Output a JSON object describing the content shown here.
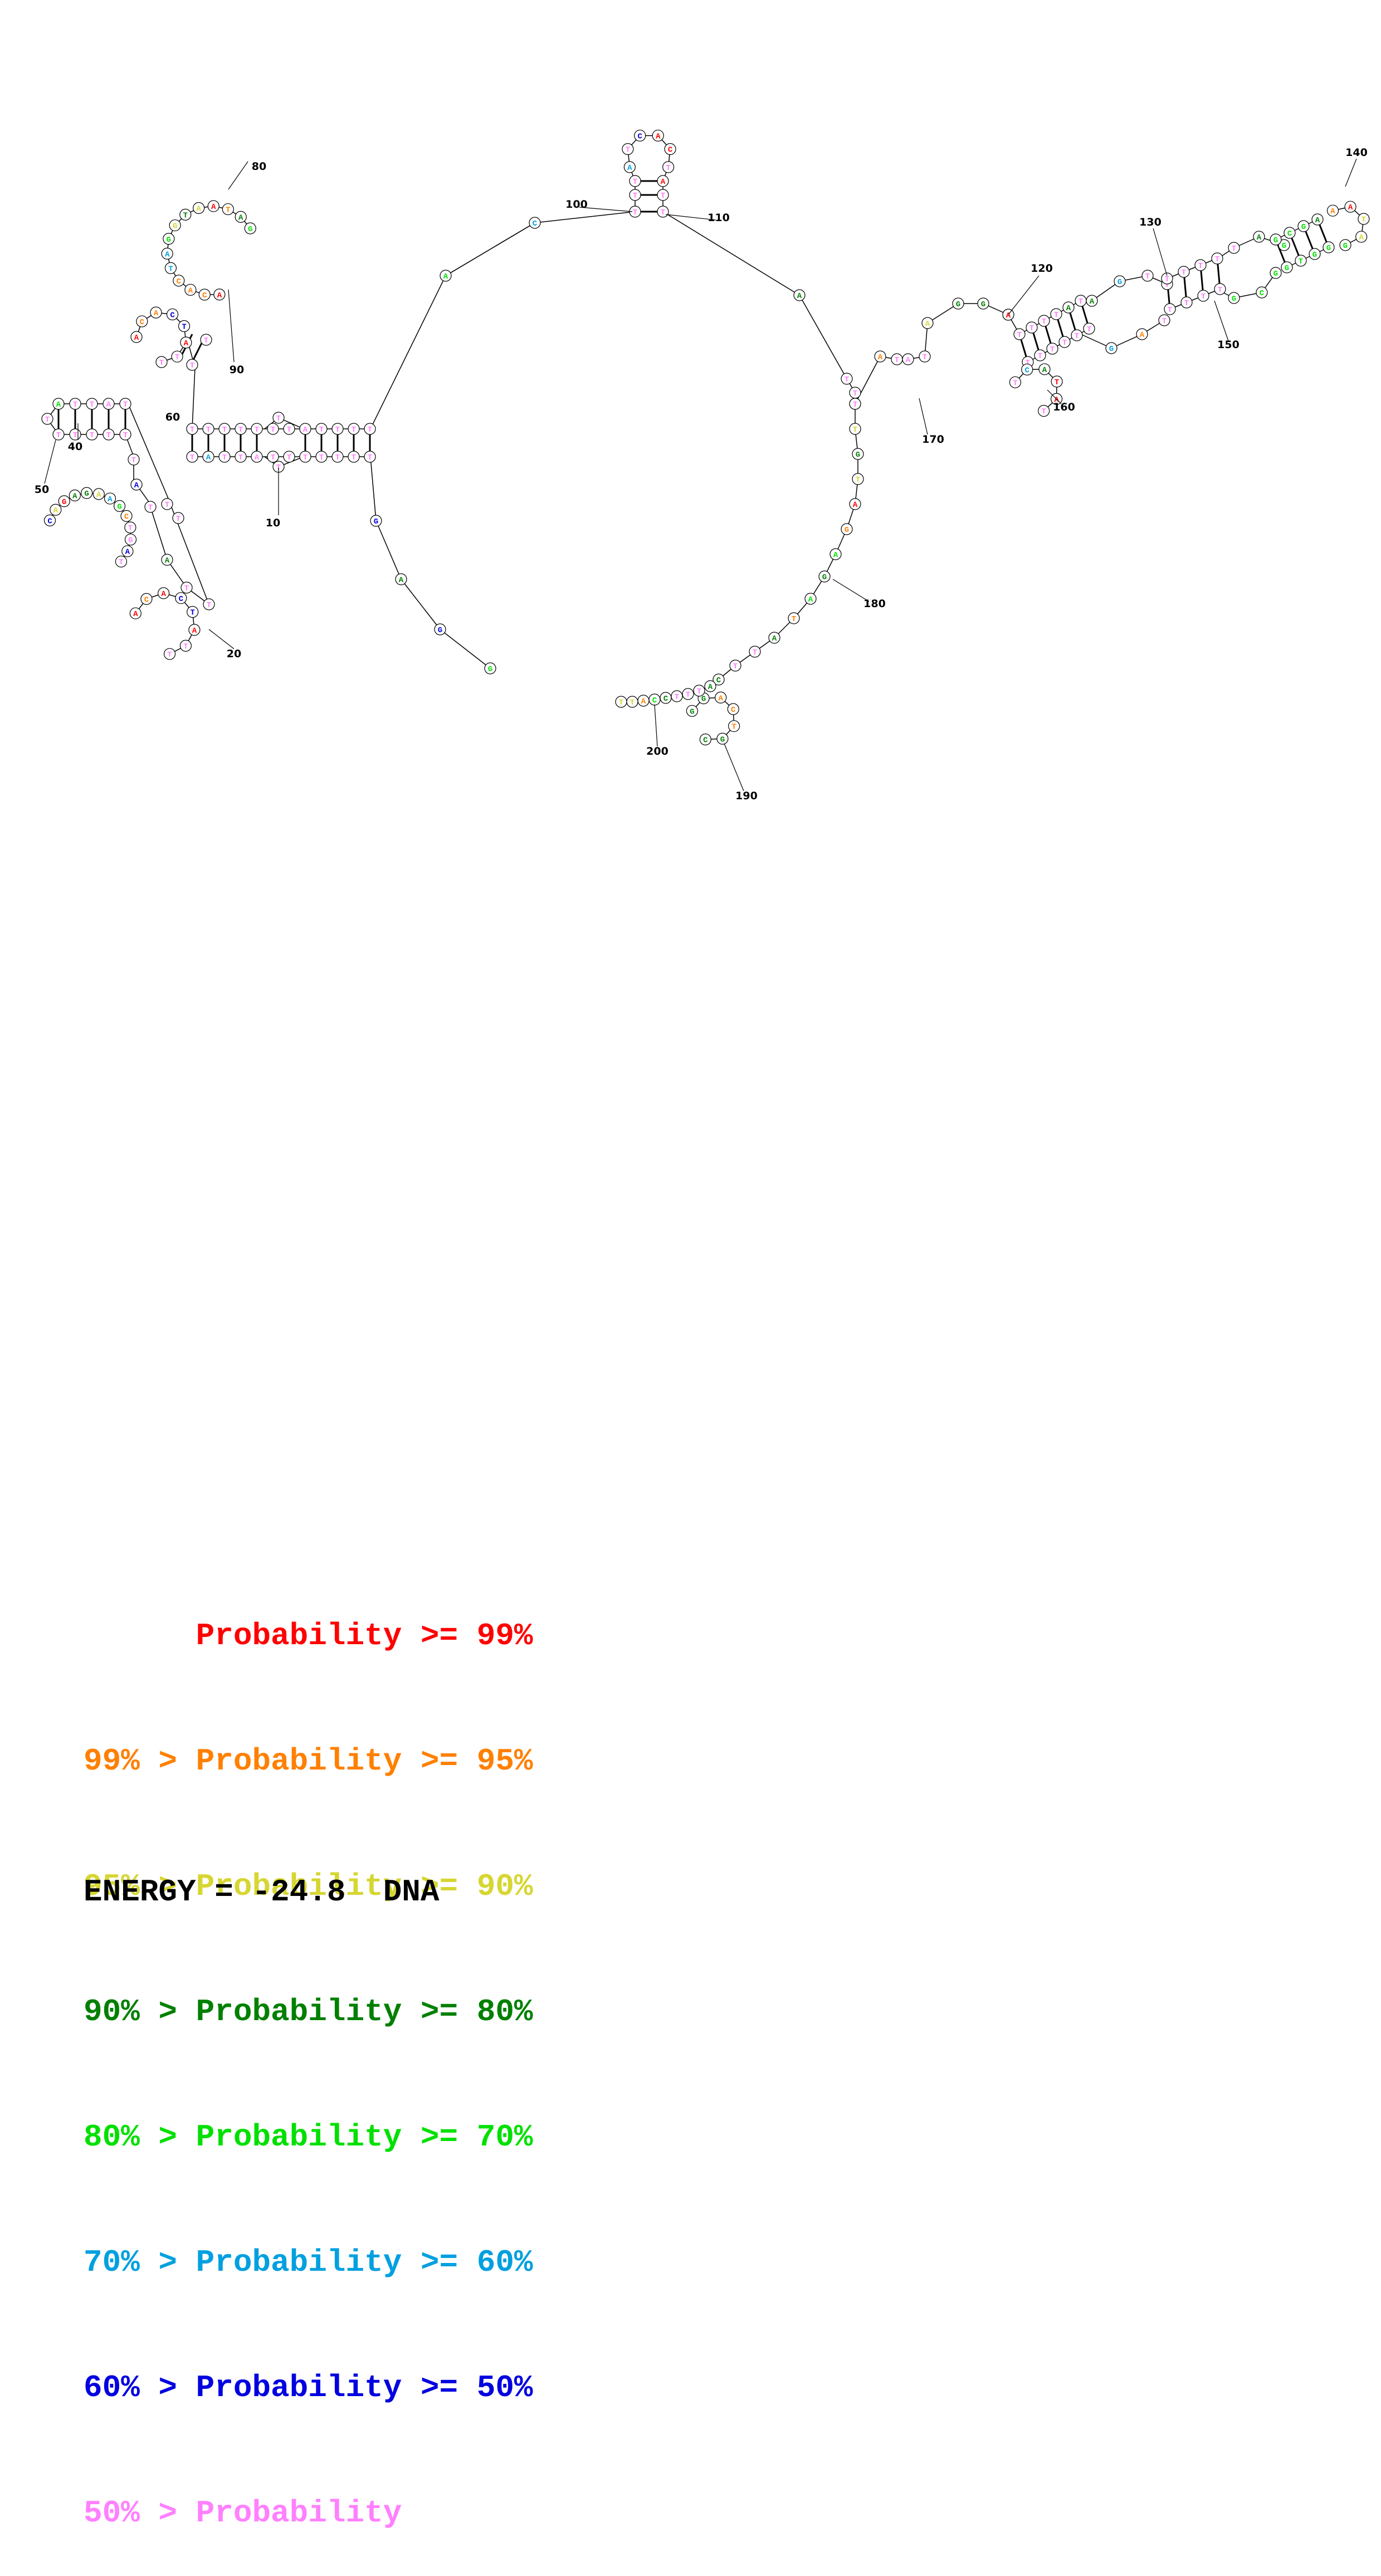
{
  "diagram": {
    "type": "rna-secondary-structure",
    "position_labels": [
      "10",
      "20",
      "40",
      "50",
      "60",
      "80",
      "90",
      "100",
      "110",
      "120",
      "130",
      "140",
      "150",
      "160",
      "170",
      "180",
      "190",
      "200"
    ],
    "nucleotides": {
      "hairpin_top": [
        "T",
        "C",
        "A",
        "C",
        "A",
        "T",
        "T",
        "T",
        "T"
      ],
      "hairpin_left": [
        "A",
        "C",
        "A",
        "C",
        "T",
        "A",
        "G",
        "G",
        "T",
        "A",
        "A",
        "T",
        "A",
        "G",
        "G",
        "T",
        "C",
        "A"
      ],
      "loop_lower_left": [
        "C",
        "A",
        "G",
        "A",
        "G",
        "A",
        "A",
        "G",
        "C",
        "T",
        "G",
        "A",
        "T",
        "A",
        "T"
      ],
      "loop_bottom": [
        "A",
        "C",
        "A",
        "C",
        "T",
        "A",
        "T",
        "T"
      ],
      "branch_right": [
        "A",
        "A",
        "G",
        "G",
        "C",
        "A",
        "C",
        "A",
        "A",
        "A",
        "A",
        "G",
        "G",
        "C",
        "A",
        "C",
        "A",
        "A",
        "T",
        "C",
        "T",
        "A",
        "A",
        "G",
        "C",
        "G",
        "T",
        "A",
        "A",
        "A",
        "A",
        "A",
        "G",
        "T",
        "T"
      ],
      "branch_bottom": [
        "T",
        "T",
        "A",
        "C",
        "C",
        "A",
        "C",
        "G",
        "G",
        "A",
        "A",
        "C",
        "G",
        "T",
        "T"
      ],
      "tail": [
        "G",
        "A",
        "G",
        "G"
      ]
    },
    "colors": {
      "p99": "#ff0000",
      "p95": "#ff8000",
      "p90": "#d6d632",
      "p80": "#008000",
      "p70": "#00e000",
      "p60": "#00a0e0",
      "p50": "#0000e0",
      "plt50": "#ff80ff"
    }
  },
  "legend": [
    {
      "text": "      Probability >= 99%",
      "color": "#ff0000"
    },
    {
      "text": "99% > Probability >= 95%",
      "color": "#ff8000"
    },
    {
      "text": "95% > Probability >= 90%",
      "color": "#d6d632"
    },
    {
      "text": "90% > Probability >= 80%",
      "color": "#008000"
    },
    {
      "text": "80% > Probability >= 70%",
      "color": "#00e000"
    },
    {
      "text": "70% > Probability >= 60%",
      "color": "#00a0e0"
    },
    {
      "text": "60% > Probability >= 50%",
      "color": "#0000e0"
    },
    {
      "text": "50% > Probability",
      "color": "#ff80ff"
    }
  ],
  "energy_line": "ENERGY = -24.8  DNA"
}
